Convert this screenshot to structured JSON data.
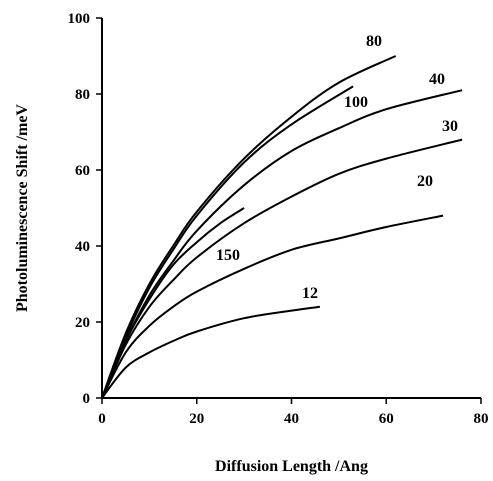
{
  "chart_data": {
    "type": "line",
    "xlabel": "Diffusion Length /Ang",
    "ylabel": "Photoluminescence Shift /meV",
    "xlim": [
      0,
      80
    ],
    "ylim": [
      0,
      100
    ],
    "x_ticks": [
      "0",
      "20",
      "40",
      "60",
      "80"
    ],
    "y_ticks": [
      "0",
      "20",
      "40",
      "60",
      "80",
      "100"
    ],
    "grid": false,
    "series": [
      {
        "name": "80",
        "points": [
          [
            0,
            0
          ],
          [
            5,
            17
          ],
          [
            10,
            30
          ],
          [
            15,
            40
          ],
          [
            20,
            49
          ],
          [
            30,
            63
          ],
          [
            40,
            74
          ],
          [
            50,
            83
          ],
          [
            62,
            90
          ]
        ]
      },
      {
        "name": "100",
        "points": [
          [
            0,
            0
          ],
          [
            5,
            16
          ],
          [
            10,
            29
          ],
          [
            15,
            39
          ],
          [
            20,
            48
          ],
          [
            30,
            62
          ],
          [
            40,
            72
          ],
          [
            53,
            82
          ]
        ]
      },
      {
        "name": "40",
        "points": [
          [
            0,
            0
          ],
          [
            5,
            15
          ],
          [
            10,
            27
          ],
          [
            15,
            36
          ],
          [
            20,
            44
          ],
          [
            30,
            56
          ],
          [
            40,
            65
          ],
          [
            50,
            71
          ],
          [
            60,
            76
          ],
          [
            76,
            81
          ]
        ]
      },
      {
        "name": "30",
        "points": [
          [
            0,
            0
          ],
          [
            5,
            14
          ],
          [
            10,
            24
          ],
          [
            15,
            31
          ],
          [
            20,
            37
          ],
          [
            30,
            46
          ],
          [
            40,
            53
          ],
          [
            50,
            59
          ],
          [
            60,
            63
          ],
          [
            76,
            68
          ]
        ]
      },
      {
        "name": "150",
        "points": [
          [
            0,
            0
          ],
          [
            5,
            15
          ],
          [
            10,
            26
          ],
          [
            15,
            35
          ],
          [
            20,
            41
          ],
          [
            25,
            46
          ],
          [
            30,
            50
          ]
        ]
      },
      {
        "name": "20",
        "points": [
          [
            0,
            0
          ],
          [
            5,
            12
          ],
          [
            10,
            19
          ],
          [
            15,
            24
          ],
          [
            20,
            28
          ],
          [
            30,
            34
          ],
          [
            40,
            39
          ],
          [
            50,
            42
          ],
          [
            60,
            45
          ],
          [
            72,
            48
          ]
        ]
      },
      {
        "name": "12",
        "points": [
          [
            0,
            0
          ],
          [
            5,
            8
          ],
          [
            10,
            12
          ],
          [
            15,
            15
          ],
          [
            20,
            17.5
          ],
          [
            30,
            21
          ],
          [
            40,
            23
          ],
          [
            46,
            24
          ]
        ]
      }
    ]
  }
}
